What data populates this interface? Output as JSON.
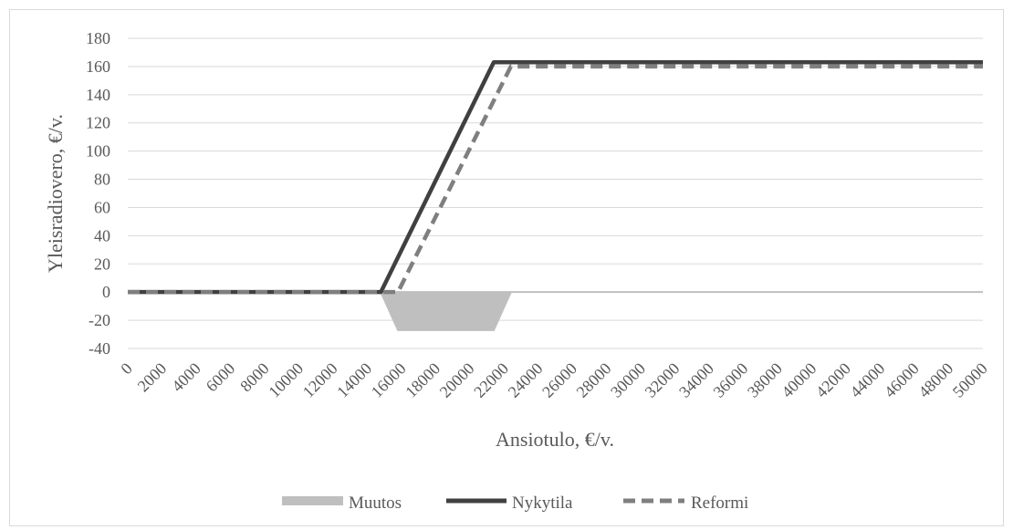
{
  "chart_data": {
    "type": "line",
    "title": "",
    "xlabel": "Ansiotulo, €/v.",
    "ylabel": "Yleisradiovero, €/v.",
    "ylim": [
      -40,
      180
    ],
    "yticks": [
      "180",
      "160",
      "140",
      "120",
      "100",
      "80",
      "60",
      "40",
      "20",
      "0",
      "-20",
      "-40"
    ],
    "xlim": [
      0,
      50000
    ],
    "xticks": [
      "0",
      "2000",
      "4000",
      "6000",
      "8000",
      "10000",
      "12000",
      "14000",
      "16000",
      "18000",
      "20000",
      "22000",
      "24000",
      "26000",
      "28000",
      "30000",
      "32000",
      "34000",
      "36000",
      "38000",
      "40000",
      "42000",
      "44000",
      "46000",
      "48000",
      "50000"
    ],
    "grid": true,
    "legend_position": "bottom",
    "series": [
      {
        "name": "Muutos",
        "kind": "area",
        "color": "#bfbfbf",
        "x": [
          0,
          14800,
          15800,
          21400,
          22400,
          50000
        ],
        "y": [
          0,
          0,
          -27,
          -27,
          0,
          0
        ]
      },
      {
        "name": "Nykytila",
        "kind": "line",
        "style": "solid",
        "color": "#404040",
        "x": [
          0,
          14800,
          21400,
          50000
        ],
        "y": [
          0,
          0,
          163,
          163
        ]
      },
      {
        "name": "Reformi",
        "kind": "line",
        "style": "dashed",
        "color": "#7f7f7f",
        "x": [
          0,
          15800,
          22400,
          50000
        ],
        "y": [
          0,
          0,
          160,
          160
        ]
      }
    ]
  }
}
